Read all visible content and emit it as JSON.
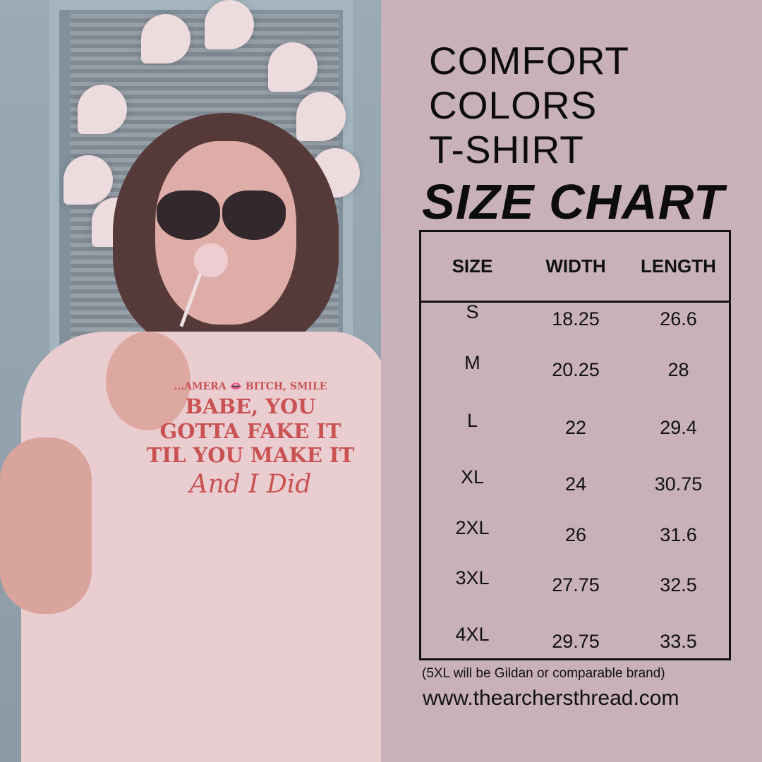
{
  "colors": {
    "panel_background": "#c8b1ba",
    "text": "#111111",
    "shirt_print": "#c8443f"
  },
  "photo": {
    "shirt_print": {
      "top_left": "...AMERA",
      "top_right": "BITCH, SMILE",
      "line1": "BABE, YOU",
      "line2": "GOTTA FAKE IT",
      "line3": "TIL YOU MAKE IT",
      "script": "And I Did"
    }
  },
  "title": {
    "line1": "COMFORT",
    "line2": "COLORS",
    "line3": "T-SHIRT",
    "heading": "SIZE CHART"
  },
  "table": {
    "headers": [
      "SIZE",
      "WIDTH",
      "LENGTH"
    ],
    "rows": [
      [
        "S",
        "18.25",
        "26.6"
      ],
      [
        "M",
        "20.25",
        "28"
      ],
      [
        "L",
        "22",
        "29.4"
      ],
      [
        "XL",
        "24",
        "30.75"
      ],
      [
        "2XL",
        "26",
        "31.6"
      ],
      [
        "3XL",
        "27.75",
        "32.5"
      ],
      [
        "4XL",
        "29.75",
        "33.5"
      ]
    ]
  },
  "note": "(5XL will be Gildan or comparable brand)",
  "website": "www.thearchersthread.com"
}
